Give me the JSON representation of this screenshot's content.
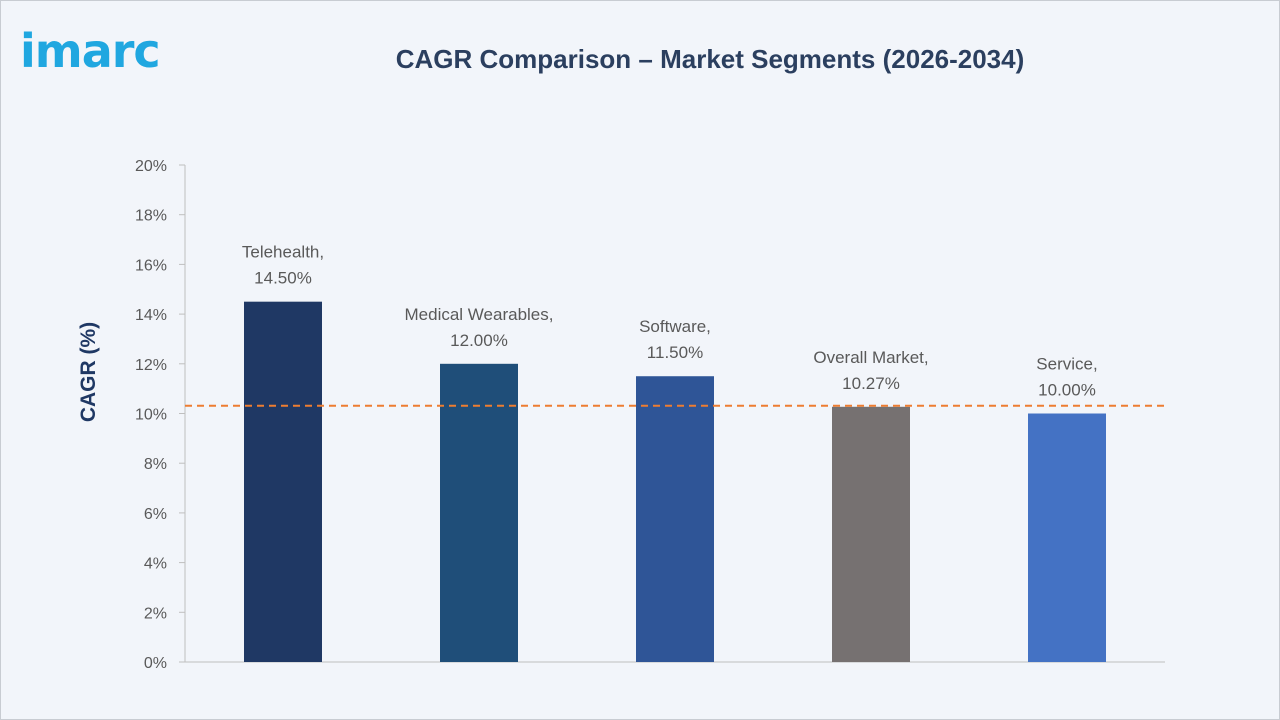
{
  "brand": {
    "logo_text": "imarc",
    "color": "#20a7e0"
  },
  "chart_data": {
    "type": "bar",
    "title": "CAGR Comparison – Market Segments (2026-2034)",
    "ylabel": "CAGR (%)",
    "xlabel": "",
    "categories": [
      "Telehealth",
      "Medical Wearables",
      "Software",
      "Overall Market",
      "Service"
    ],
    "values": [
      14.5,
      12.0,
      11.5,
      10.27,
      10.0
    ],
    "data_labels": [
      [
        "Telehealth,",
        "14.50%"
      ],
      [
        "Medical Wearables,",
        "12.00%"
      ],
      [
        "Software,",
        "11.50%"
      ],
      [
        "Overall Market,",
        "10.27%"
      ],
      [
        "Service,",
        "10.00%"
      ]
    ],
    "colors": [
      "#1f3864",
      "#1f4e79",
      "#2f5597",
      "#767171",
      "#4472c4"
    ],
    "ylim": [
      0,
      20
    ],
    "yticks": [
      0,
      2,
      4,
      6,
      8,
      10,
      12,
      14,
      16,
      18,
      20
    ],
    "ytick_labels": [
      "0%",
      "2%",
      "4%",
      "6%",
      "8%",
      "10%",
      "12%",
      "14%",
      "16%",
      "18%",
      "20%"
    ],
    "reference_line": {
      "value": 10.27,
      "style": "dashed",
      "color": "#ed7d31"
    },
    "grid": false,
    "legend": "none"
  }
}
